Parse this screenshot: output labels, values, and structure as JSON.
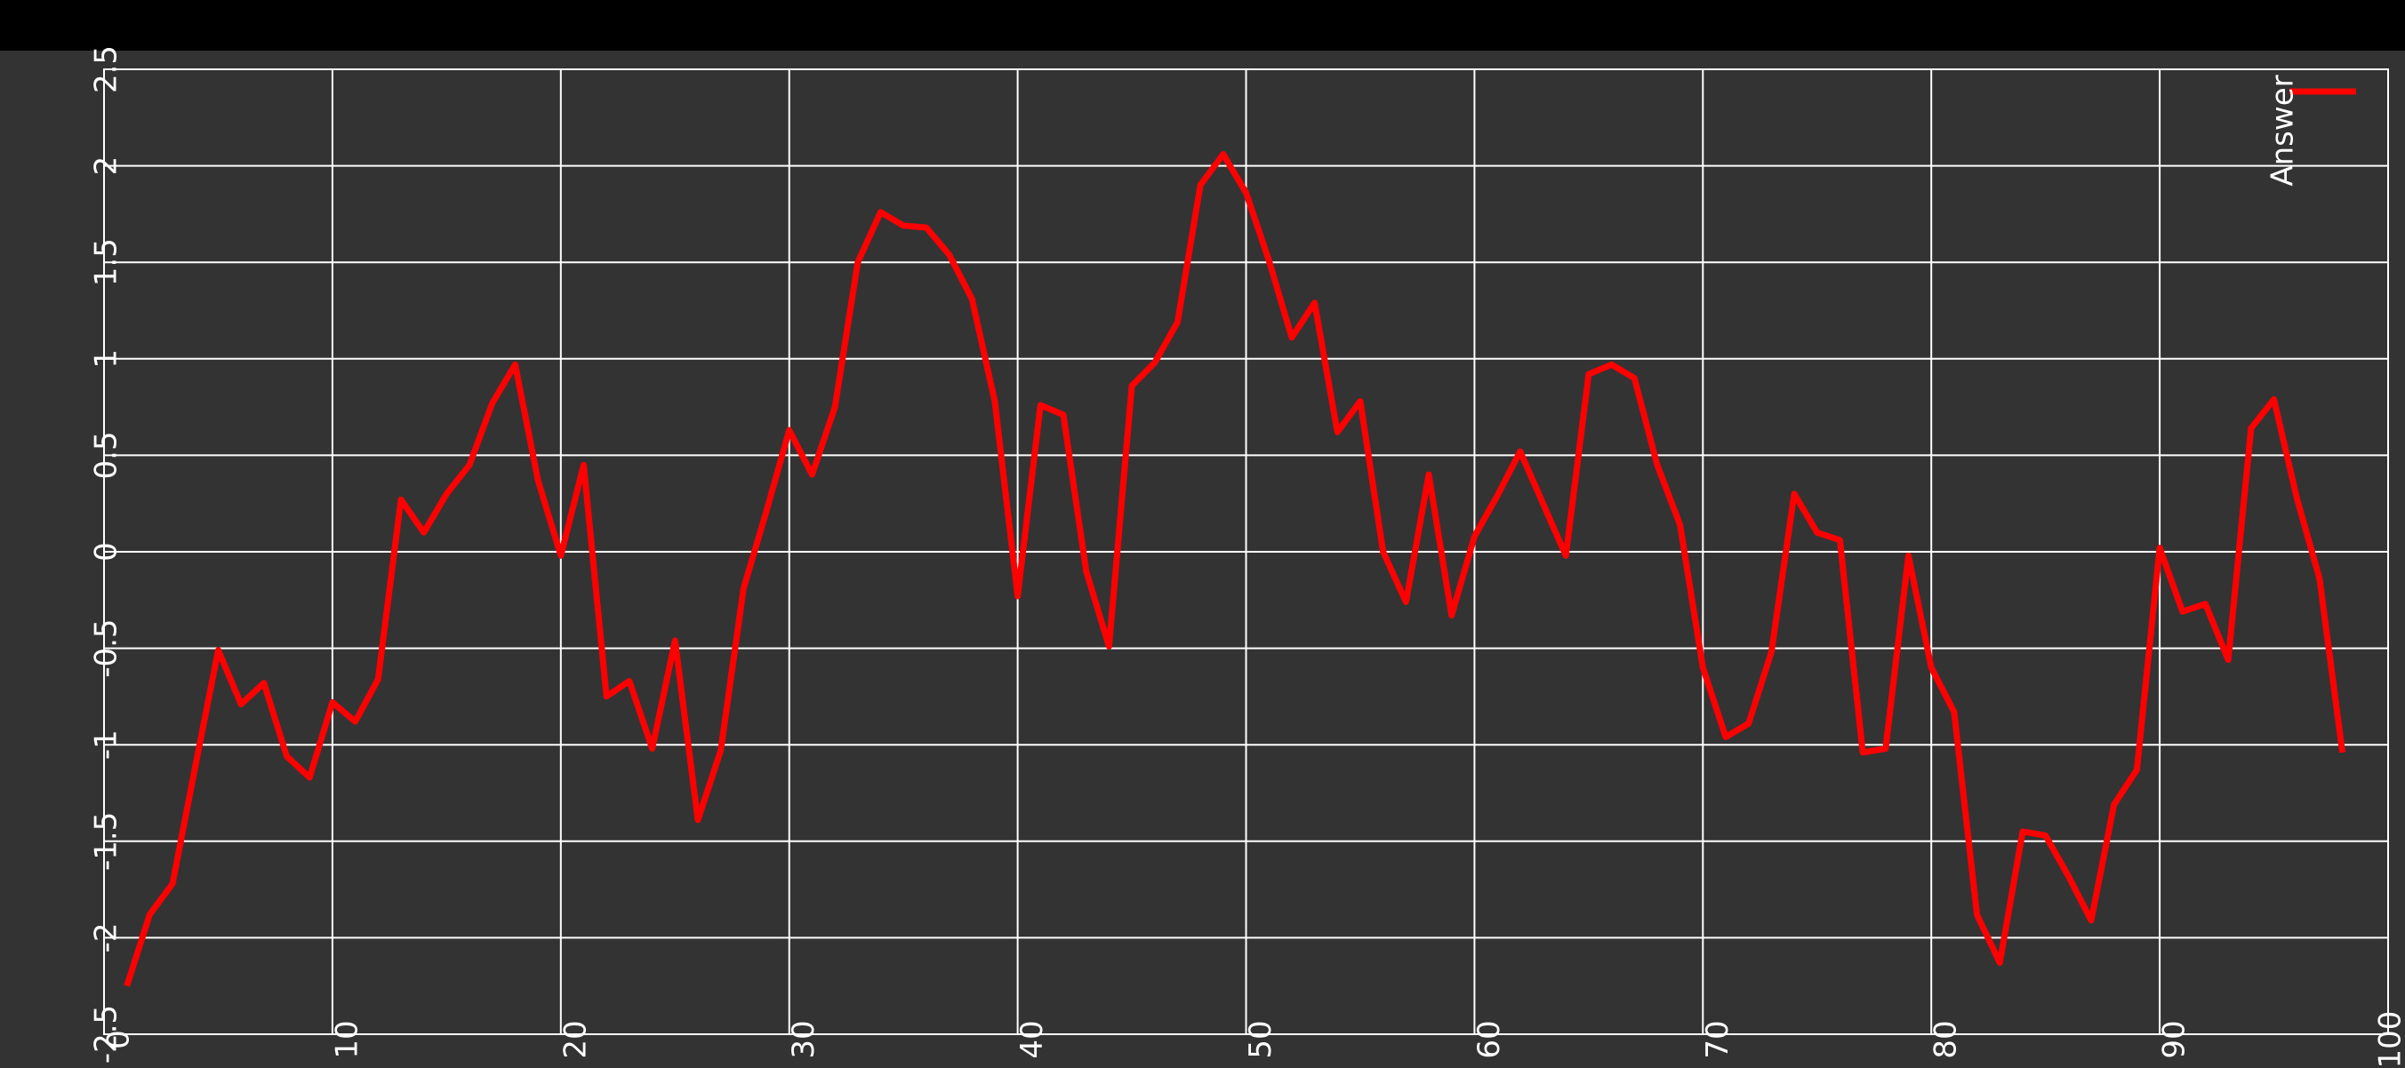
{
  "chart_data": {
    "type": "line",
    "x": [
      1,
      2,
      3,
      4,
      5,
      6,
      7,
      8,
      9,
      10,
      11,
      12,
      13,
      14,
      15,
      16,
      17,
      18,
      19,
      20,
      21,
      22,
      23,
      24,
      25,
      26,
      27,
      28,
      29,
      30,
      31,
      32,
      33,
      34,
      35,
      36,
      37,
      38,
      39,
      40,
      41,
      42,
      43,
      44,
      45,
      46,
      47,
      48,
      49,
      50,
      51,
      52,
      53,
      54,
      55,
      56,
      57,
      58,
      59,
      60,
      61,
      62,
      63,
      64,
      65,
      66,
      67,
      68,
      69,
      70,
      71,
      72,
      73,
      74,
      75,
      76,
      77,
      78,
      79,
      80,
      81,
      82,
      83,
      84,
      85,
      86,
      87,
      88,
      89,
      90,
      91,
      92,
      93,
      94,
      95,
      96,
      97,
      98
    ],
    "series": [
      {
        "name": "Answer",
        "color": "#ff0000",
        "values": [
          -2.25,
          -1.88,
          -1.72,
          -1.11,
          -0.51,
          -0.79,
          -0.68,
          -1.06,
          -1.17,
          -0.78,
          -0.88,
          -0.66,
          0.27,
          0.1,
          0.3,
          0.45,
          0.77,
          0.97,
          0.37,
          -0.02,
          0.45,
          -0.75,
          -0.67,
          -1.02,
          -0.46,
          -1.39,
          -1.03,
          -0.19,
          0.21,
          0.63,
          0.4,
          0.75,
          1.5,
          1.76,
          1.69,
          1.68,
          1.54,
          1.31,
          0.78,
          -0.23,
          0.76,
          0.71,
          -0.1,
          -0.49,
          0.86,
          0.98,
          1.19,
          1.9,
          2.06,
          1.86,
          1.51,
          1.11,
          1.29,
          0.62,
          0.78,
          0.0,
          -0.26,
          0.4,
          -0.33,
          0.08,
          0.29,
          0.52,
          0.25,
          -0.02,
          0.92,
          0.97,
          0.9,
          0.45,
          0.14,
          -0.6,
          -0.96,
          -0.89,
          -0.52,
          0.3,
          0.1,
          0.06,
          -1.04,
          -1.02,
          -0.02,
          -0.6,
          -0.83,
          -1.88,
          -2.13,
          -1.45,
          -1.47,
          -1.68,
          -1.91,
          -1.31,
          -1.13,
          0.02,
          -0.31,
          -0.27,
          -0.56,
          0.64,
          0.79,
          0.28,
          -0.14,
          -1.04
        ]
      }
    ],
    "xlim": [
      0,
      100
    ],
    "xticks": [
      0,
      10,
      20,
      30,
      40,
      50,
      60,
      70,
      80,
      90,
      100
    ],
    "ylim": [
      -2.5,
      2.5
    ],
    "yticks": [
      -2.5,
      -2,
      -1.5,
      -1,
      -0.5,
      0,
      0.5,
      1,
      1.5,
      2,
      2.5
    ],
    "grid": true,
    "legend": "upper right"
  }
}
